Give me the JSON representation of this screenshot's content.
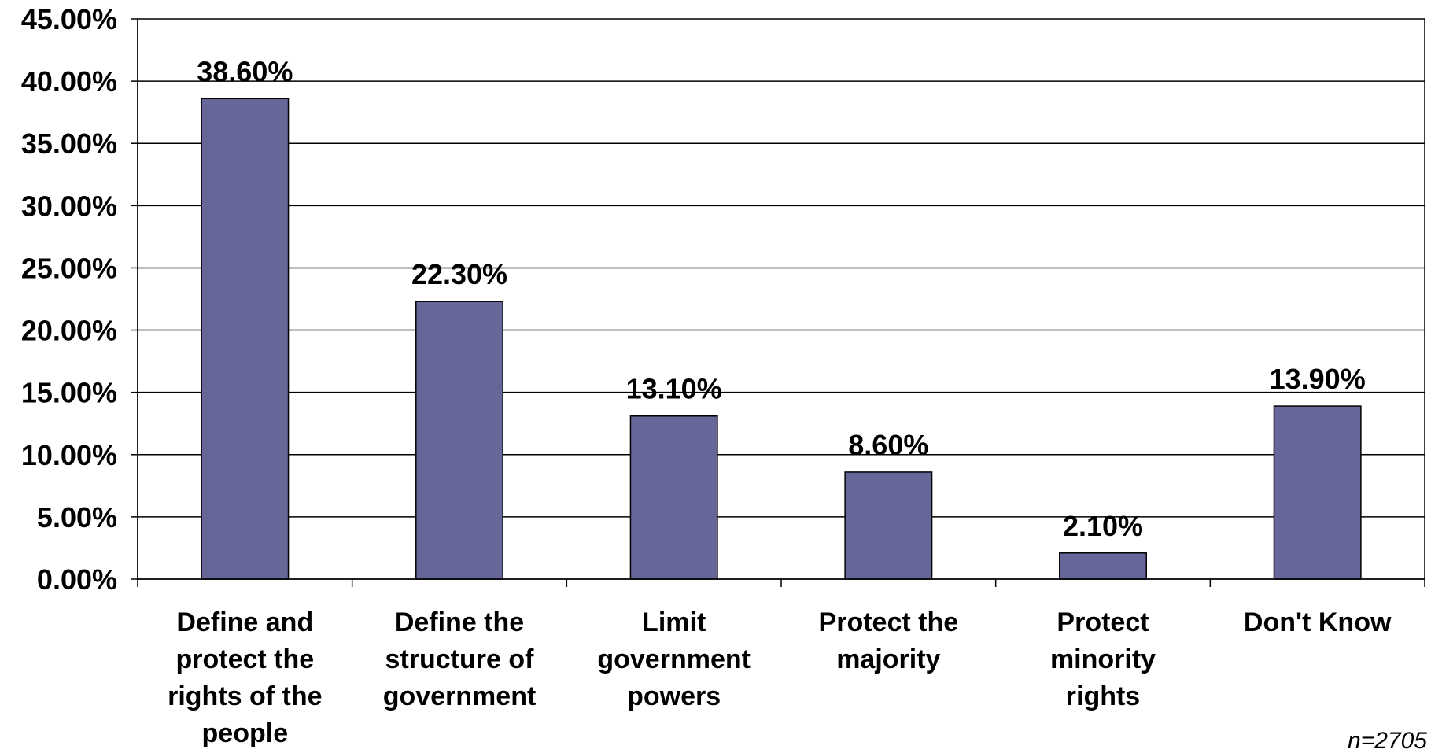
{
  "chart_data": {
    "type": "bar",
    "categories": [
      [
        "Define and",
        "protect the",
        "rights of the",
        "people"
      ],
      [
        "Define the",
        "structure of",
        "government"
      ],
      [
        "Limit",
        "government",
        "powers"
      ],
      [
        "Protect the",
        "majority"
      ],
      [
        "Protect",
        "minority",
        "rights"
      ],
      [
        "Don't Know"
      ]
    ],
    "values": [
      38.6,
      22.3,
      13.1,
      8.6,
      2.1,
      13.9
    ],
    "data_labels": [
      "38.60%",
      "22.30%",
      "13.10%",
      "8.60%",
      "2.10%",
      "13.90%"
    ],
    "y_ticks": [
      0,
      5,
      10,
      15,
      20,
      25,
      30,
      35,
      40,
      45
    ],
    "y_tick_labels": [
      "0.00%",
      "5.00%",
      "10.00%",
      "15.00%",
      "20.00%",
      "25.00%",
      "30.00%",
      "35.00%",
      "40.00%",
      "45.00%"
    ],
    "ylim": [
      0,
      45
    ],
    "grid": true,
    "legend": "none",
    "title": "",
    "xlabel": "",
    "ylabel": "",
    "bar_color": "#666699",
    "note": "n=2705"
  }
}
